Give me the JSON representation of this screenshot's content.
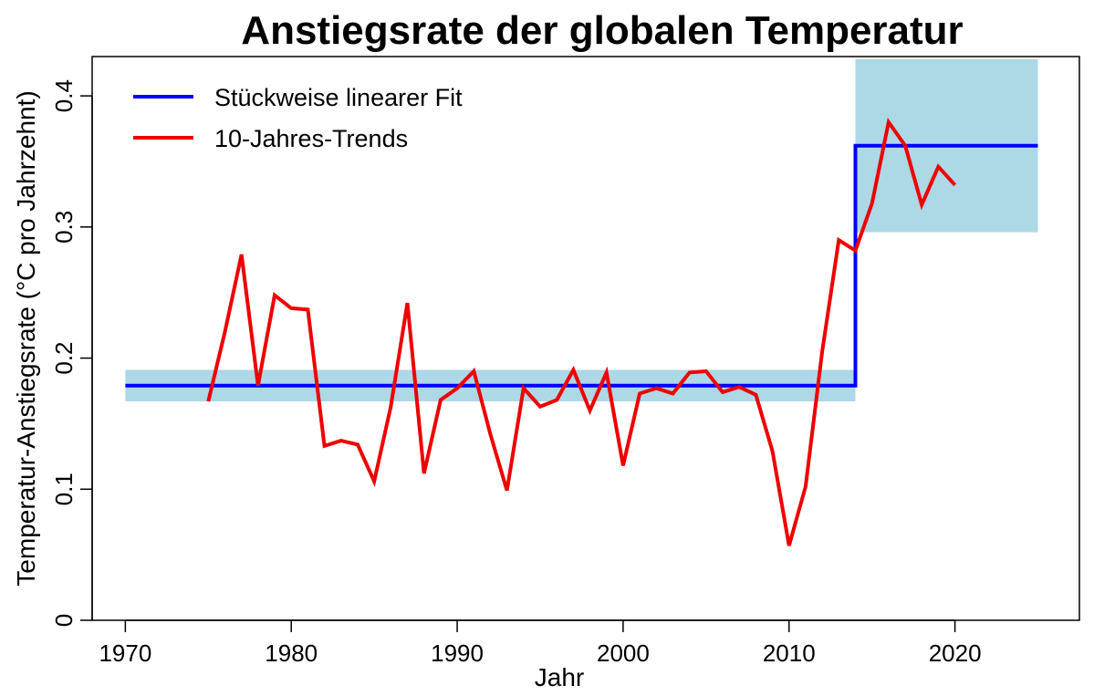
{
  "chart_data": {
    "type": "line",
    "title": "Anstiegsrate der globalen Temperatur",
    "xlabel": "Jahr",
    "ylabel": "Temperatur-Anstiegsrate (°C pro Jahrzehnt)",
    "xlim": [
      1968,
      2027.5
    ],
    "ylim": [
      0,
      0.43
    ],
    "xticks": [
      1970,
      1980,
      1990,
      2000,
      2010,
      2020
    ],
    "yticks": [
      0,
      0.1,
      0.2,
      0.3,
      0.4
    ],
    "xtick_labels": [
      "1970",
      "1980",
      "1990",
      "2000",
      "2010",
      "2020"
    ],
    "ytick_labels": [
      "0",
      "0.1",
      "0.2",
      "0.3",
      "0.4"
    ],
    "legend": [
      {
        "label": "Stückweise linearer Fit",
        "color": "#0000ff"
      },
      {
        "label": "10-Jahres-Trends",
        "color": "#ee0000"
      }
    ],
    "legend_position": "top-left",
    "uncertainty_bands": [
      {
        "x": [
          1970,
          2014
        ],
        "y": [
          0.167,
          0.191
        ],
        "color": "#add8e6"
      },
      {
        "x": [
          2014,
          2025
        ],
        "y": [
          0.296,
          0.428
        ],
        "color": "#add8e6"
      }
    ],
    "series": [
      {
        "name": "Stückweise linearer Fit",
        "color": "#0000ff",
        "x": [
          1970,
          2014,
          2014,
          2025
        ],
        "y": [
          0.179,
          0.179,
          0.362,
          0.362
        ]
      },
      {
        "name": "10-Jahres-Trends",
        "color": "#ee0000",
        "x": [
          1975,
          1976,
          1977,
          1978,
          1979,
          1980,
          1981,
          1982,
          1983,
          1984,
          1985,
          1986,
          1987,
          1988,
          1989,
          1990,
          1991,
          1992,
          1993,
          1994,
          1995,
          1996,
          1997,
          1998,
          1999,
          2000,
          2001,
          2002,
          2003,
          2004,
          2005,
          2006,
          2007,
          2008,
          2009,
          2010,
          2011,
          2012,
          2013,
          2014,
          2015,
          2016,
          2017,
          2018,
          2019,
          2020
        ],
        "y": [
          0.167,
          0.22,
          0.279,
          0.179,
          0.248,
          0.238,
          0.237,
          0.133,
          0.137,
          0.134,
          0.106,
          0.163,
          0.242,
          0.112,
          0.168,
          0.177,
          0.19,
          0.142,
          0.099,
          0.177,
          0.163,
          0.168,
          0.191,
          0.16,
          0.189,
          0.118,
          0.173,
          0.177,
          0.173,
          0.189,
          0.19,
          0.174,
          0.178,
          0.172,
          0.129,
          0.057,
          0.102,
          0.205,
          0.29,
          0.282,
          0.318,
          0.38,
          0.362,
          0.317,
          0.346,
          0.332
        ]
      }
    ]
  }
}
